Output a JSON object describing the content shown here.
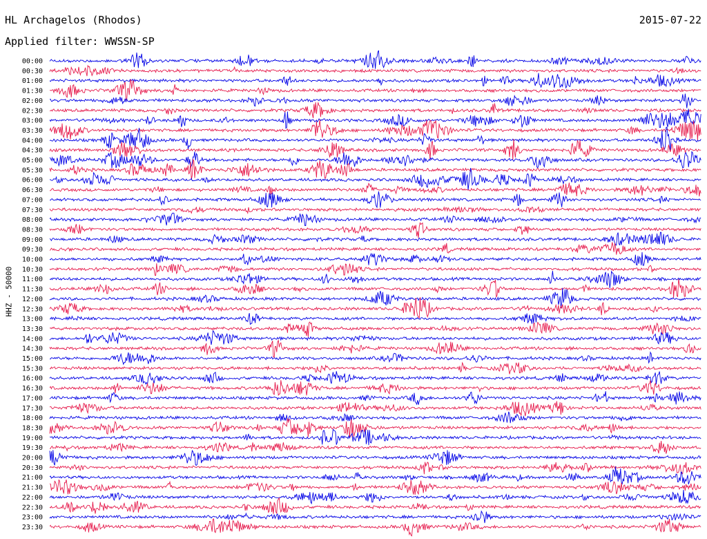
{
  "station": {
    "title": "HL Archagelos (Rhodos)",
    "date": "2015-07-22"
  },
  "filter_label": "Applied filter: WWSSN-SP",
  "colors": {
    "trace_a": "#0000e6",
    "trace_b": "#e6194b"
  },
  "chart_data": {
    "type": "line",
    "title": "HL Archagelos (Rhodos)",
    "subtitle": "Applied filter: WWSSN-SP",
    "ylabel": "HHZ - 50000",
    "xlabel": "",
    "grid": false,
    "legend": "none",
    "row_labels": [
      "00:00",
      "00:30",
      "01:00",
      "01:30",
      "02:00",
      "02:30",
      "03:00",
      "03:30",
      "04:00",
      "04:30",
      "05:00",
      "05:30",
      "06:00",
      "06:30",
      "07:00",
      "07:30",
      "08:00",
      "08:30",
      "09:00",
      "09:30",
      "10:00",
      "10:30",
      "11:00",
      "11:30",
      "12:00",
      "12:30",
      "13:00",
      "13:30",
      "14:00",
      "14:30",
      "15:00",
      "15:30",
      "16:00",
      "16:30",
      "17:00",
      "17:30",
      "18:00",
      "18:30",
      "19:00",
      "19:30",
      "20:00",
      "20:30",
      "21:00",
      "21:30",
      "22:00",
      "22:30",
      "23:00",
      "23:30"
    ],
    "series": [
      {
        "values": []
      }
    ]
  }
}
